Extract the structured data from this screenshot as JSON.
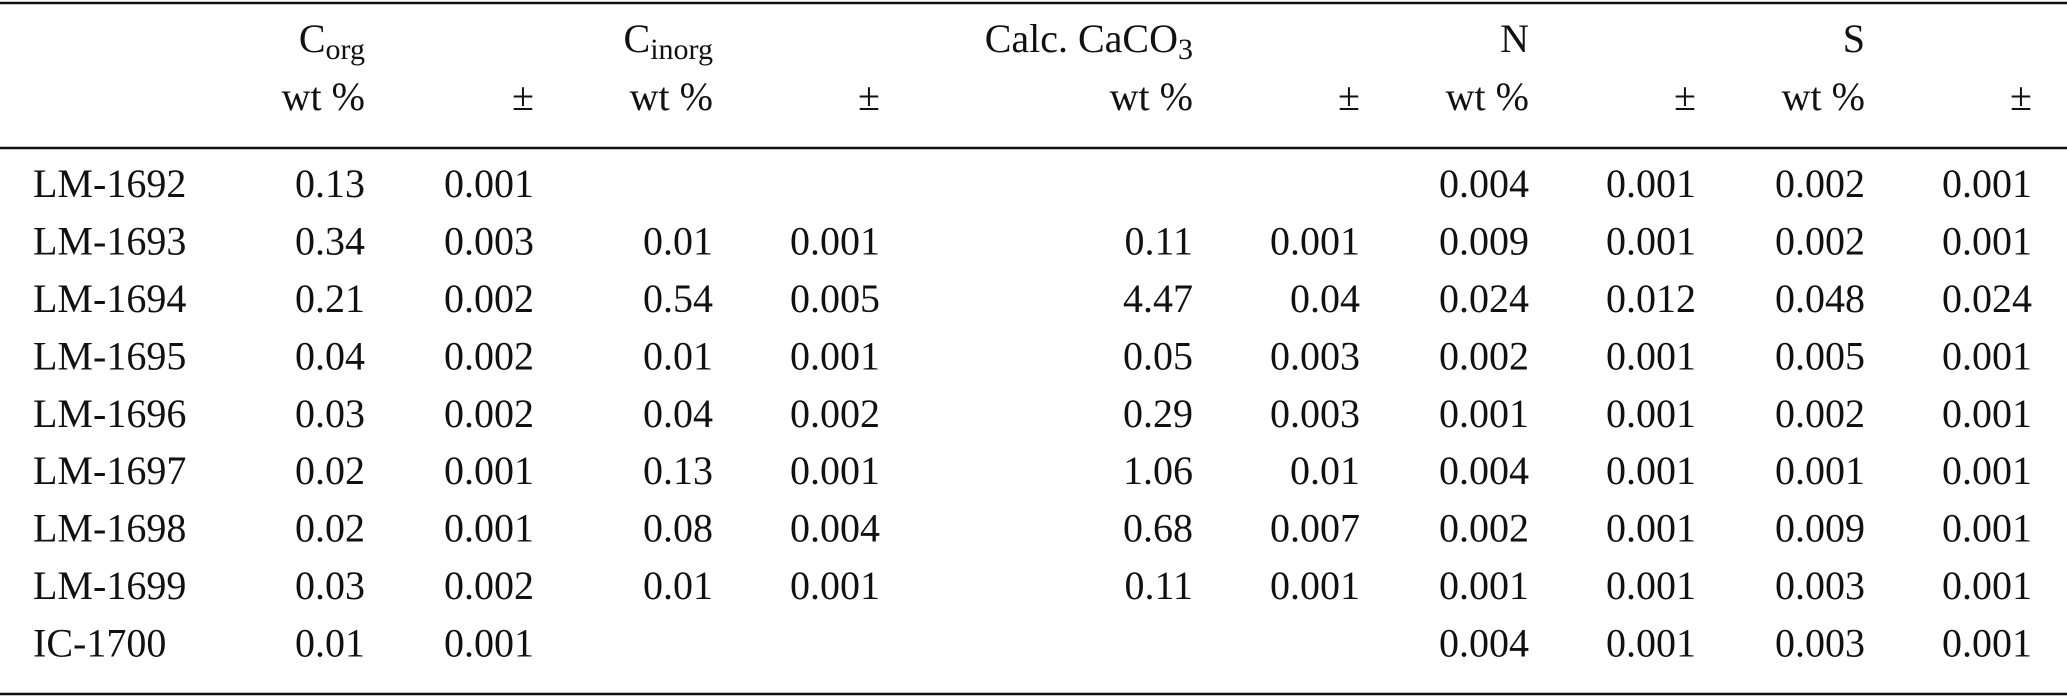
{
  "table": {
    "header": [
      [
        null,
        {
          "text": "C",
          "sub": "org"
        },
        null,
        {
          "text": "C",
          "sub": "inorg"
        },
        null,
        {
          "text": "Calc. CaCO",
          "sub": "3"
        },
        null,
        "N",
        null,
        "S",
        null
      ],
      [
        null,
        "wt %",
        "±",
        "wt %",
        "±",
        "wt %",
        "±",
        "wt %",
        "±",
        "wt %",
        "±"
      ]
    ],
    "rows": [
      [
        "LM-1692",
        "0.13",
        "0.001",
        null,
        null,
        null,
        null,
        "0.004",
        "0.001",
        "0.002",
        "0.001"
      ],
      [
        "LM-1693",
        "0.34",
        "0.003",
        "0.01",
        "0.001",
        "0.11",
        "0.001",
        "0.009",
        "0.001",
        "0.002",
        "0.001"
      ],
      [
        "LM-1694",
        "0.21",
        "0.002",
        "0.54",
        "0.005",
        "4.47",
        "0.04",
        "0.024",
        "0.012",
        "0.048",
        "0.024"
      ],
      [
        "LM-1695",
        "0.04",
        "0.002",
        "0.01",
        "0.001",
        "0.05",
        "0.003",
        "0.002",
        "0.001",
        "0.005",
        "0.001"
      ],
      [
        "LM-1696",
        "0.03",
        "0.002",
        "0.04",
        "0.002",
        "0.29",
        "0.003",
        "0.001",
        "0.001",
        "0.002",
        "0.001"
      ],
      [
        "LM-1697",
        "0.02",
        "0.001",
        "0.13",
        "0.001",
        "1.06",
        "0.01",
        "0.004",
        "0.001",
        "0.001",
        "0.001"
      ],
      [
        "LM-1698",
        "0.02",
        "0.001",
        "0.08",
        "0.004",
        "0.68",
        "0.007",
        "0.002",
        "0.001",
        "0.009",
        "0.001"
      ],
      [
        "LM-1699",
        "0.03",
        "0.002",
        "0.01",
        "0.001",
        "0.11",
        "0.001",
        "0.001",
        "0.001",
        "0.003",
        "0.001"
      ],
      [
        "IC-1700",
        "0.01",
        "0.001",
        null,
        null,
        null,
        null,
        "0.004",
        "0.001",
        "0.003",
        "0.001"
      ]
    ]
  }
}
